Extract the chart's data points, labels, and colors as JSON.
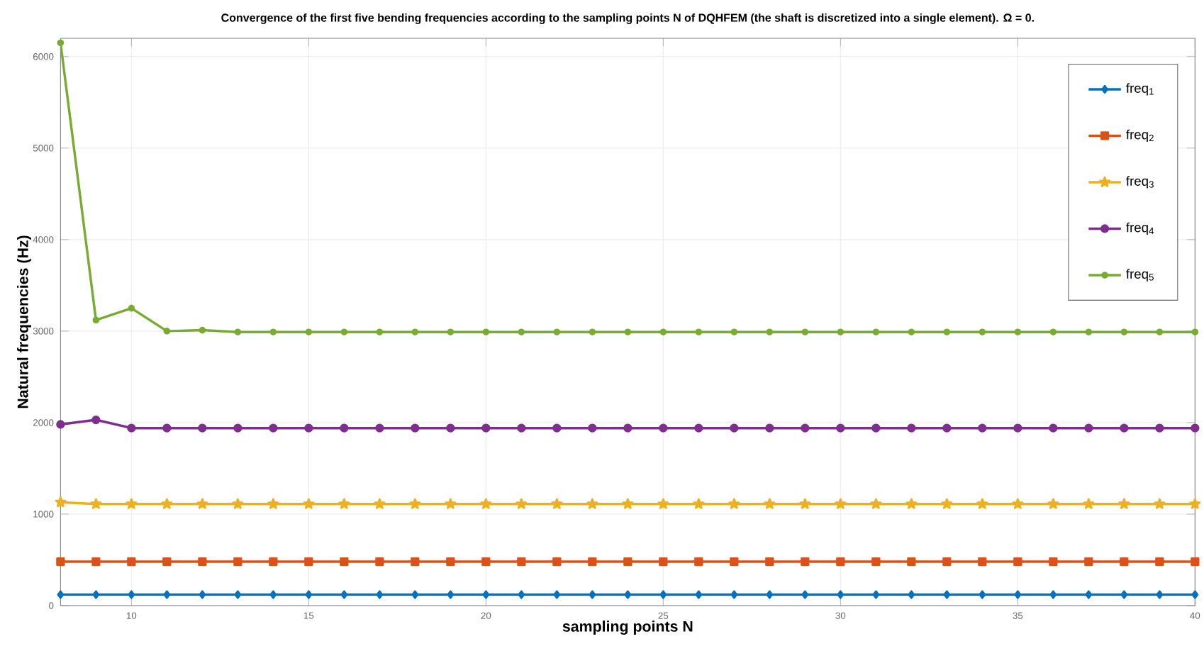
{
  "chart_data": {
    "type": "line",
    "title": "Convergence of the first five bending frequencies according to the sampling points N of DQHFEM (the shaft is discretized into a single element). Ω = 0.",
    "xlabel": "sampling points N",
    "ylabel": "Natural frequencies (Hz)",
    "x": [
      8,
      9,
      10,
      11,
      12,
      13,
      14,
      15,
      16,
      17,
      18,
      19,
      20,
      21,
      22,
      23,
      24,
      25,
      26,
      27,
      28,
      29,
      30,
      31,
      32,
      33,
      34,
      35,
      36,
      37,
      38,
      39,
      40
    ],
    "xlim": [
      8,
      40
    ],
    "xticks": [
      10,
      15,
      20,
      25,
      30,
      35,
      40
    ],
    "ylim": [
      0,
      6200
    ],
    "yticks": [
      0,
      1000,
      2000,
      3000,
      4000,
      5000,
      6000
    ],
    "grid": true,
    "legend": "top right",
    "series": [
      {
        "name": "freq$_{1}$",
        "color": "#0072bd",
        "marker": "diamond",
        "values": [
          120,
          120,
          120,
          120,
          120,
          120,
          120,
          120,
          120,
          120,
          120,
          120,
          120,
          120,
          120,
          120,
          120,
          120,
          120,
          120,
          120,
          120,
          120,
          120,
          120,
          120,
          120,
          120,
          120,
          120,
          120,
          120,
          120
        ]
      },
      {
        "name": "freq$_{2}$",
        "color": "#d95319",
        "marker": "square",
        "values": [
          480,
          480,
          480,
          480,
          480,
          480,
          480,
          480,
          480,
          480,
          480,
          480,
          480,
          480,
          480,
          480,
          480,
          480,
          480,
          480,
          480,
          480,
          480,
          480,
          480,
          480,
          480,
          480,
          480,
          480,
          480,
          480,
          480
        ]
      },
      {
        "name": "freq$_{3}$",
        "color": "#edb120",
        "marker": "star",
        "values": [
          1130,
          1110,
          1110,
          1110,
          1110,
          1110,
          1110,
          1110,
          1110,
          1110,
          1110,
          1110,
          1110,
          1110,
          1110,
          1110,
          1110,
          1110,
          1110,
          1110,
          1110,
          1110,
          1110,
          1110,
          1110,
          1110,
          1110,
          1110,
          1110,
          1110,
          1110,
          1110,
          1110
        ]
      },
      {
        "name": "freq$_{4}$",
        "color": "#7e2f8e",
        "marker": "circle",
        "values": [
          1980,
          2030,
          1940,
          1940,
          1940,
          1940,
          1940,
          1940,
          1940,
          1940,
          1940,
          1940,
          1940,
          1940,
          1940,
          1940,
          1940,
          1940,
          1940,
          1940,
          1940,
          1940,
          1940,
          1940,
          1940,
          1940,
          1940,
          1940,
          1940,
          1940,
          1940,
          1940,
          1940
        ]
      },
      {
        "name": "freq$_{5}$",
        "color": "#77ac30",
        "marker": "circle",
        "values": [
          6150,
          3120,
          3250,
          3000,
          3010,
          2990,
          2990,
          2990,
          2990,
          2990,
          2990,
          2990,
          2990,
          2990,
          2990,
          2990,
          2990,
          2990,
          2990,
          2990,
          2990,
          2990,
          2990,
          2990,
          2990,
          2990,
          2990,
          2990,
          2990,
          2990,
          2990,
          2990,
          2990
        ]
      }
    ]
  }
}
